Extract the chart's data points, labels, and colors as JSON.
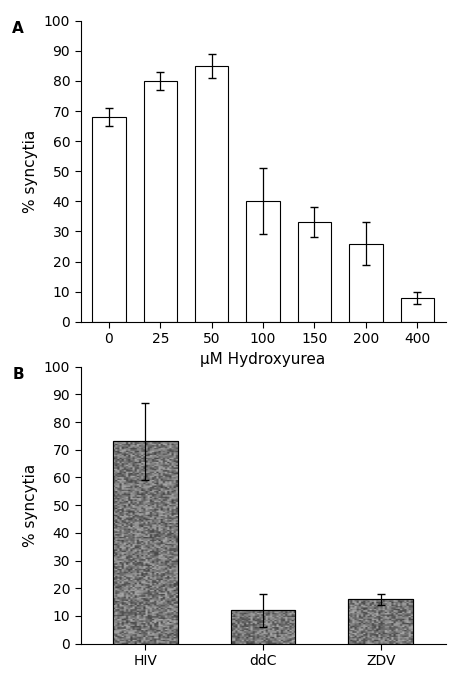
{
  "panel_a": {
    "label": "A",
    "categories": [
      "0",
      "25",
      "50",
      "100",
      "150",
      "200",
      "400"
    ],
    "values": [
      68,
      80,
      85,
      40,
      33,
      26,
      8
    ],
    "errors": [
      3,
      3,
      4,
      11,
      5,
      7,
      2
    ],
    "xlabel": "μM Hydroxyurea",
    "ylabel": "% syncytia",
    "ylim": [
      0,
      100
    ],
    "yticks": [
      0,
      10,
      20,
      30,
      40,
      50,
      60,
      70,
      80,
      90,
      100
    ],
    "bar_color": "white",
    "bar_edgecolor": "black",
    "bar_width": 0.65
  },
  "panel_b": {
    "label": "B",
    "categories": [
      "HIV",
      "ddC",
      "ZDV"
    ],
    "values": [
      73,
      12,
      16
    ],
    "errors": [
      14,
      6,
      2
    ],
    "xlabel": "",
    "ylabel": "% syncytia",
    "ylim": [
      0,
      100
    ],
    "yticks": [
      0,
      10,
      20,
      30,
      40,
      50,
      60,
      70,
      80,
      90,
      100
    ],
    "bar_color": "#aaaaaa",
    "bar_edgecolor": "black",
    "bar_width": 0.55
  },
  "figure_bg": "white",
  "fontsize_labels": 11,
  "fontsize_ticks": 10,
  "fontsize_panel_label": 11
}
